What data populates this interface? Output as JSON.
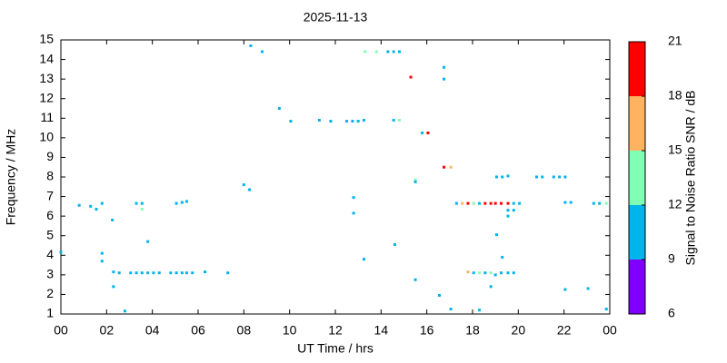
{
  "chart_data": {
    "type": "scatter",
    "title": "2025-11-13",
    "xlabel": "UT Time / hrs",
    "ylabel": "Frequency / MHz",
    "xlim": [
      0,
      24
    ],
    "ylim": [
      1,
      15
    ],
    "xticks": [
      {
        "value": 0,
        "label": "00"
      },
      {
        "value": 2,
        "label": "02"
      },
      {
        "value": 4,
        "label": "04"
      },
      {
        "value": 6,
        "label": "06"
      },
      {
        "value": 8,
        "label": "08"
      },
      10,
      12,
      14,
      16,
      18,
      20,
      22,
      {
        "value": 24,
        "label": "00"
      }
    ],
    "yticks": [
      1,
      2,
      3,
      4,
      5,
      6,
      7,
      8,
      9,
      10,
      11,
      12,
      13,
      14,
      15
    ],
    "x": [
      0.0,
      0.8,
      1.3,
      1.55,
      1.8,
      1.8,
      1.8,
      2.25,
      2.3,
      2.55,
      2.3,
      2.8,
      3.05,
      3.3,
      3.55,
      3.55,
      3.3,
      3.55,
      3.8,
      4.05,
      4.3,
      3.8,
      4.8,
      5.05,
      5.3,
      5.5,
      5.05,
      5.3,
      5.5,
      5.75,
      6.3,
      7.3,
      8.0,
      8.25,
      8.3,
      8.8,
      9.55,
      10.05,
      11.3,
      11.8,
      12.5,
      12.75,
      13.0,
      13.25,
      12.8,
      12.8,
      13.25,
      13.3,
      13.8,
      14.3,
      14.55,
      14.8,
      14.55,
      14.8,
      14.6,
      15.3,
      15.5,
      15.5,
      15.5,
      15.8,
      16.05,
      16.55,
      16.75,
      16.75,
      16.75,
      17.05,
      17.05,
      17.3,
      17.55,
      17.8,
      18.05,
      18.3,
      18.55,
      18.8,
      19.0,
      19.25,
      19.55,
      19.8,
      17.8,
      18.05,
      18.3,
      18.55,
      18.8,
      19.0,
      19.25,
      19.55,
      19.8,
      18.3,
      18.8,
      19.05,
      19.3,
      19.05,
      19.3,
      19.55,
      19.55,
      19.8,
      19.55,
      20.05,
      20.8,
      21.05,
      21.55,
      21.8,
      22.05,
      22.05,
      22.3,
      22.05,
      23.05,
      23.3,
      23.55,
      23.85,
      23.85
    ],
    "values": [
      4.15,
      6.55,
      6.5,
      6.35,
      6.65,
      4.1,
      3.7,
      5.8,
      3.15,
      3.1,
      2.4,
      1.15,
      3.1,
      6.65,
      6.65,
      6.35,
      3.1,
      3.1,
      3.1,
      3.1,
      3.1,
      4.7,
      3.1,
      6.65,
      6.7,
      6.75,
      3.1,
      3.1,
      3.1,
      3.1,
      3.15,
      3.1,
      7.6,
      7.35,
      14.7,
      14.4,
      11.5,
      10.85,
      10.9,
      10.85,
      10.85,
      10.85,
      10.85,
      10.9,
      6.95,
      6.15,
      3.8,
      14.4,
      14.4,
      14.4,
      14.4,
      14.4,
      10.9,
      10.9,
      4.55,
      13.1,
      2.75,
      7.85,
      7.75,
      10.25,
      10.25,
      1.95,
      13.6,
      13.0,
      8.5,
      8.5,
      1.25,
      6.65,
      6.65,
      6.65,
      6.65,
      6.65,
      6.65,
      6.65,
      6.65,
      6.65,
      6.65,
      6.65,
      3.15,
      3.1,
      3.1,
      3.1,
      3.1,
      3.0,
      3.1,
      3.1,
      3.1,
      1.2,
      2.4,
      5.05,
      3.9,
      8.0,
      8.0,
      8.05,
      6.3,
      6.3,
      6.0,
      6.65,
      8.0,
      8.0,
      8.0,
      8.0,
      8.0,
      6.7,
      6.7,
      2.25,
      2.3,
      6.65,
      6.65,
      6.65,
      1.25
    ],
    "snr": [
      10,
      10,
      10,
      10,
      10,
      10,
      10,
      10,
      10,
      10,
      10,
      10,
      10,
      10,
      10,
      13,
      10,
      10,
      10,
      10,
      10,
      10,
      10,
      10,
      10,
      10,
      10,
      10,
      10,
      10,
      10,
      11,
      10,
      10,
      10,
      10,
      10,
      10,
      10,
      10,
      10,
      10,
      10,
      10,
      10,
      10,
      10,
      13,
      13,
      10,
      10,
      10,
      10,
      13,
      10,
      19,
      10,
      13,
      10,
      10,
      19,
      10,
      10,
      10,
      19,
      16,
      10,
      10,
      16,
      19,
      13,
      10,
      19,
      19,
      19,
      19,
      19,
      10,
      16,
      10,
      13,
      10,
      13,
      10,
      10,
      10,
      10,
      10,
      10,
      10,
      10,
      10,
      10,
      10,
      10,
      10,
      10,
      10,
      10,
      10,
      10,
      10,
      10,
      10,
      10,
      10,
      10,
      10,
      10,
      13,
      10
    ],
    "colorbar": {
      "label": "Signal to Noise Ratio SNR / dB",
      "lim": [
        6,
        21
      ],
      "ticks": [
        6,
        9,
        12,
        15,
        18,
        21
      ],
      "colors": [
        "#8000ff",
        "#00b4ec",
        "#80ffb4",
        "#ffb360",
        "#ff0000"
      ]
    }
  }
}
